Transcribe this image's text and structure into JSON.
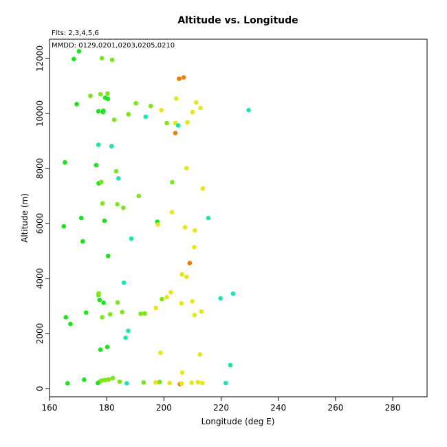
{
  "chart_data": {
    "type": "scatter",
    "title": "Altitude vs. Longitude",
    "subtitle": "Flts: 2,3,4,5,6",
    "annotation": "MMDD: 0129,0201,0203,0205,0210",
    "xlabel": "Longitude (deg E)",
    "ylabel": "Altitude (m)",
    "xlim": [
      160,
      292
    ],
    "ylim": [
      -300,
      12700
    ],
    "x_ticks": [
      160,
      180,
      200,
      220,
      240,
      260,
      280
    ],
    "y_ticks": [
      0,
      2000,
      4000,
      6000,
      8000,
      10000,
      12000
    ],
    "grid": false,
    "legend": "none",
    "colors": {
      "green": "#19e619",
      "lime": "#7ce619",
      "yellow": "#e6e619",
      "cyan": "#19e6b3",
      "orange": "#f07c0a"
    },
    "points": [
      {
        "x": 168.5,
        "y": 11980,
        "c": "green"
      },
      {
        "x": 170.3,
        "y": 12260,
        "c": "green"
      },
      {
        "x": 178.3,
        "y": 12010,
        "c": "lime"
      },
      {
        "x": 181.9,
        "y": 11950,
        "c": "lime"
      },
      {
        "x": 205.3,
        "y": 11260,
        "c": "orange"
      },
      {
        "x": 206.9,
        "y": 11310,
        "c": "orange"
      },
      {
        "x": 174.3,
        "y": 10640,
        "c": "lime"
      },
      {
        "x": 177.8,
        "y": 10700,
        "c": "lime"
      },
      {
        "x": 180.3,
        "y": 10720,
        "c": "lime"
      },
      {
        "x": 169.5,
        "y": 10340,
        "c": "green"
      },
      {
        "x": 179.5,
        "y": 10570,
        "c": "green"
      },
      {
        "x": 180.4,
        "y": 10530,
        "c": "green"
      },
      {
        "x": 190.2,
        "y": 10370,
        "c": "lime"
      },
      {
        "x": 195.4,
        "y": 10270,
        "c": "lime"
      },
      {
        "x": 204.3,
        "y": 10540,
        "c": "yellow"
      },
      {
        "x": 211.3,
        "y": 10400,
        "c": "yellow"
      },
      {
        "x": 212.8,
        "y": 10200,
        "c": "yellow"
      },
      {
        "x": 199.1,
        "y": 10120,
        "c": "yellow"
      },
      {
        "x": 210.0,
        "y": 10050,
        "c": "yellow"
      },
      {
        "x": 229.6,
        "y": 10120,
        "c": "cyan"
      },
      {
        "x": 177.1,
        "y": 10080,
        "c": "green"
      },
      {
        "x": 178.7,
        "y": 10050,
        "c": "green"
      },
      {
        "x": 178.8,
        "y": 10100,
        "c": "green"
      },
      {
        "x": 187.6,
        "y": 9970,
        "c": "lime"
      },
      {
        "x": 193.6,
        "y": 9880,
        "c": "cyan"
      },
      {
        "x": 182.6,
        "y": 9770,
        "c": "lime"
      },
      {
        "x": 201.0,
        "y": 9650,
        "c": "lime"
      },
      {
        "x": 204.0,
        "y": 9650,
        "c": "yellow"
      },
      {
        "x": 205.0,
        "y": 9560,
        "c": "cyan"
      },
      {
        "x": 208.2,
        "y": 9680,
        "c": "yellow"
      },
      {
        "x": 204.0,
        "y": 9290,
        "c": "orange"
      },
      {
        "x": 177.1,
        "y": 8860,
        "c": "cyan"
      },
      {
        "x": 181.7,
        "y": 8810,
        "c": "cyan"
      },
      {
        "x": 165.4,
        "y": 8220,
        "c": "green"
      },
      {
        "x": 176.3,
        "y": 8120,
        "c": "green"
      },
      {
        "x": 207.9,
        "y": 8010,
        "c": "yellow"
      },
      {
        "x": 183.3,
        "y": 7900,
        "c": "lime"
      },
      {
        "x": 184.1,
        "y": 7640,
        "c": "cyan"
      },
      {
        "x": 177.2,
        "y": 7460,
        "c": "green"
      },
      {
        "x": 178.1,
        "y": 7510,
        "c": "lime"
      },
      {
        "x": 202.9,
        "y": 7500,
        "c": "lime"
      },
      {
        "x": 213.6,
        "y": 7270,
        "c": "yellow"
      },
      {
        "x": 191.2,
        "y": 7000,
        "c": "lime"
      },
      {
        "x": 178.5,
        "y": 6730,
        "c": "lime"
      },
      {
        "x": 183.7,
        "y": 6700,
        "c": "lime"
      },
      {
        "x": 185.8,
        "y": 6570,
        "c": "lime"
      },
      {
        "x": 202.8,
        "y": 6410,
        "c": "yellow"
      },
      {
        "x": 171.1,
        "y": 6200,
        "c": "green"
      },
      {
        "x": 179.2,
        "y": 6100,
        "c": "green"
      },
      {
        "x": 197.7,
        "y": 6060,
        "c": "green"
      },
      {
        "x": 197.9,
        "y": 5960,
        "c": "yellow"
      },
      {
        "x": 215.5,
        "y": 6200,
        "c": "cyan"
      },
      {
        "x": 165.0,
        "y": 5900,
        "c": "green"
      },
      {
        "x": 207.4,
        "y": 5860,
        "c": "yellow"
      },
      {
        "x": 210.8,
        "y": 5750,
        "c": "yellow"
      },
      {
        "x": 188.6,
        "y": 5450,
        "c": "cyan"
      },
      {
        "x": 171.6,
        "y": 5350,
        "c": "green"
      },
      {
        "x": 210.6,
        "y": 5140,
        "c": "yellow"
      },
      {
        "x": 180.5,
        "y": 4820,
        "c": "green"
      },
      {
        "x": 209.0,
        "y": 4560,
        "c": "orange"
      },
      {
        "x": 206.3,
        "y": 4150,
        "c": "yellow"
      },
      {
        "x": 207.9,
        "y": 4060,
        "c": "yellow"
      },
      {
        "x": 186.0,
        "y": 3850,
        "c": "cyan"
      },
      {
        "x": 224.2,
        "y": 3450,
        "c": "cyan"
      },
      {
        "x": 202.4,
        "y": 3500,
        "c": "yellow"
      },
      {
        "x": 177.2,
        "y": 3460,
        "c": "lime"
      },
      {
        "x": 177.1,
        "y": 3390,
        "c": "lime"
      },
      {
        "x": 201.0,
        "y": 3320,
        "c": "yellow"
      },
      {
        "x": 199.3,
        "y": 3250,
        "c": "lime"
      },
      {
        "x": 219.8,
        "y": 3280,
        "c": "cyan"
      },
      {
        "x": 177.5,
        "y": 3220,
        "c": "green"
      },
      {
        "x": 178.9,
        "y": 3120,
        "c": "green"
      },
      {
        "x": 183.8,
        "y": 3130,
        "c": "lime"
      },
      {
        "x": 209.9,
        "y": 3170,
        "c": "yellow"
      },
      {
        "x": 206.1,
        "y": 3100,
        "c": "yellow"
      },
      {
        "x": 197.2,
        "y": 2930,
        "c": "yellow"
      },
      {
        "x": 213.1,
        "y": 2800,
        "c": "yellow"
      },
      {
        "x": 185.4,
        "y": 2780,
        "c": "lime"
      },
      {
        "x": 172.8,
        "y": 2760,
        "c": "green"
      },
      {
        "x": 181.2,
        "y": 2700,
        "c": "lime"
      },
      {
        "x": 191.9,
        "y": 2720,
        "c": "lime"
      },
      {
        "x": 193.3,
        "y": 2730,
        "c": "lime"
      },
      {
        "x": 210.7,
        "y": 2670,
        "c": "yellow"
      },
      {
        "x": 165.7,
        "y": 2590,
        "c": "green"
      },
      {
        "x": 178.4,
        "y": 2590,
        "c": "lime"
      },
      {
        "x": 167.3,
        "y": 2350,
        "c": "green"
      },
      {
        "x": 187.5,
        "y": 2100,
        "c": "cyan"
      },
      {
        "x": 186.6,
        "y": 1850,
        "c": "cyan"
      },
      {
        "x": 180.2,
        "y": 1510,
        "c": "green"
      },
      {
        "x": 177.8,
        "y": 1410,
        "c": "green"
      },
      {
        "x": 198.8,
        "y": 1300,
        "c": "yellow"
      },
      {
        "x": 212.6,
        "y": 1240,
        "c": "yellow"
      },
      {
        "x": 223.2,
        "y": 850,
        "c": "cyan"
      },
      {
        "x": 206.4,
        "y": 580,
        "c": "yellow"
      },
      {
        "x": 182.1,
        "y": 380,
        "c": "lime"
      },
      {
        "x": 172.1,
        "y": 320,
        "c": "green"
      },
      {
        "x": 178.5,
        "y": 300,
        "c": "lime"
      },
      {
        "x": 179.5,
        "y": 310,
        "c": "lime"
      },
      {
        "x": 180.7,
        "y": 330,
        "c": "lime"
      },
      {
        "x": 177.7,
        "y": 270,
        "c": "lime"
      },
      {
        "x": 184.5,
        "y": 250,
        "c": "lime"
      },
      {
        "x": 176.9,
        "y": 200,
        "c": "green"
      },
      {
        "x": 166.3,
        "y": 190,
        "c": "green"
      },
      {
        "x": 187.0,
        "y": 190,
        "c": "cyan"
      },
      {
        "x": 192.9,
        "y": 220,
        "c": "lime"
      },
      {
        "x": 197.1,
        "y": 220,
        "c": "yellow"
      },
      {
        "x": 198.5,
        "y": 240,
        "c": "lime"
      },
      {
        "x": 202.0,
        "y": 200,
        "c": "yellow"
      },
      {
        "x": 205.6,
        "y": 160,
        "c": "orange"
      },
      {
        "x": 206.2,
        "y": 180,
        "c": "yellow"
      },
      {
        "x": 209.7,
        "y": 210,
        "c": "yellow"
      },
      {
        "x": 211.9,
        "y": 230,
        "c": "yellow"
      },
      {
        "x": 213.4,
        "y": 200,
        "c": "yellow"
      },
      {
        "x": 221.6,
        "y": 200,
        "c": "cyan"
      }
    ]
  }
}
